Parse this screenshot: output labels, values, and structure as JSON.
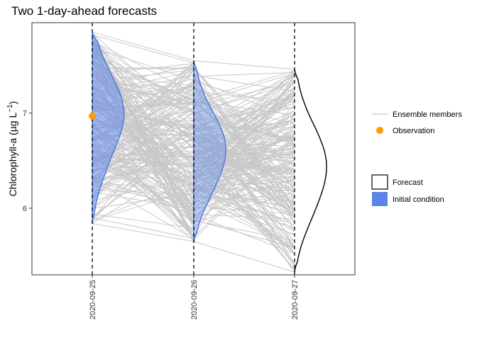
{
  "chart_data": {
    "type": "line",
    "title": "Two 1-day-ahead forecasts",
    "ylabel": "Chlorophyll-a (µg L",
    "ylabel_unit_exponent": "−1",
    "ylabel_suffix": ")",
    "xlabel": "",
    "x_ticks": [
      "2020-09-25",
      "2020-09-26",
      "2020-09-27"
    ],
    "y_ticks": [
      6,
      7
    ],
    "ylim": [
      5.3,
      7.95
    ],
    "grid": false,
    "legend_placement": "right",
    "legend": {
      "ensemble_members": "Ensemble members",
      "observation": "Observation",
      "forecast": "Forecast",
      "initial_condition": "Initial condition"
    },
    "observation": {
      "x": "2020-09-25",
      "y": 6.97
    },
    "ensemble_ranges": [
      {
        "x": "2020-09-25",
        "min": 5.84,
        "max": 7.85
      },
      {
        "x": "2020-09-26",
        "min": 5.65,
        "max": 7.55
      },
      {
        "x": "2020-09-27",
        "min": 5.33,
        "max": 7.46
      }
    ],
    "distributions": [
      {
        "name": "Initial condition",
        "x": "2020-09-25",
        "min": 5.84,
        "max": 7.85,
        "mode": 7.0
      },
      {
        "name": "Initial condition",
        "x": "2020-09-26",
        "min": 5.65,
        "max": 7.55,
        "mode": 6.63
      },
      {
        "name": "Forecast",
        "x": "2020-09-27",
        "min": 5.33,
        "max": 7.46,
        "mode": 6.45
      }
    ],
    "colors": {
      "ensemble": "#c8c8c8",
      "observation": "#ff9a00",
      "initial_fill": "#5b84e8",
      "initial_line": "#4a77e0",
      "forecast_line": "#000000"
    }
  }
}
